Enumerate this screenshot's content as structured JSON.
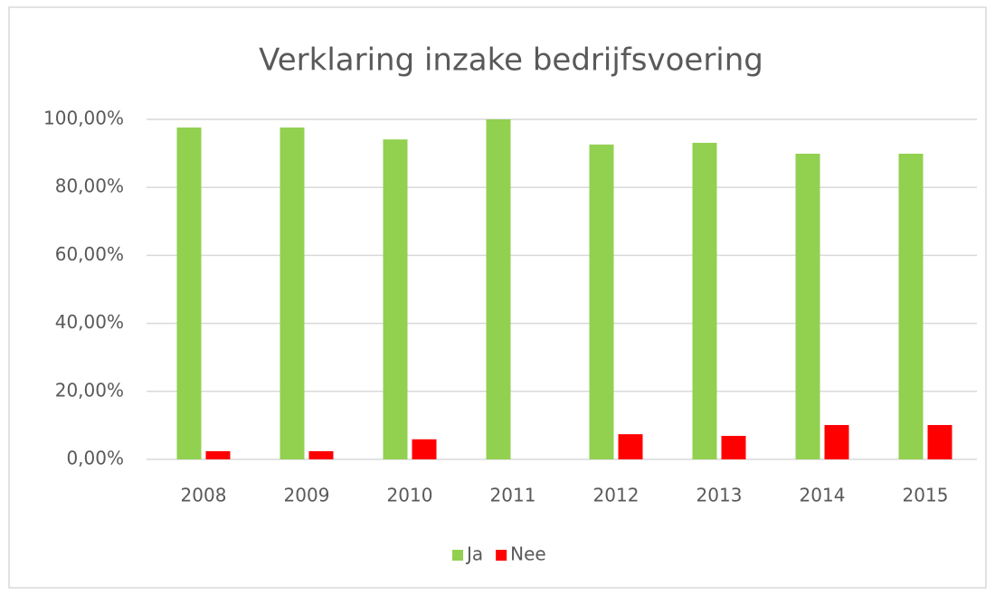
{
  "chart_data": {
    "type": "bar",
    "title": "Verklaring inzake bedrijfsvoering",
    "categories": [
      "2008",
      "2009",
      "2010",
      "2011",
      "2012",
      "2013",
      "2014",
      "2015"
    ],
    "series": [
      {
        "name": "Ja",
        "color": "#92d050",
        "values": [
          97.6,
          97.6,
          94.1,
          100,
          92.6,
          93.1,
          89.9,
          89.9
        ]
      },
      {
        "name": "Nee",
        "color": "#ff0000",
        "values": [
          2.4,
          2.4,
          5.9,
          0,
          7.4,
          6.9,
          10.1,
          10.1
        ]
      }
    ],
    "ylim": [
      0,
      100
    ],
    "yticks": [
      {
        "value": 0,
        "label": "0,00%"
      },
      {
        "value": 20,
        "label": "20,00%"
      },
      {
        "value": 40,
        "label": "40,00%"
      },
      {
        "value": 60,
        "label": "60,00%"
      },
      {
        "value": 80,
        "label": "80,00%"
      },
      {
        "value": 100,
        "label": "100,00%"
      }
    ],
    "grid": true,
    "legend": "bottom"
  }
}
